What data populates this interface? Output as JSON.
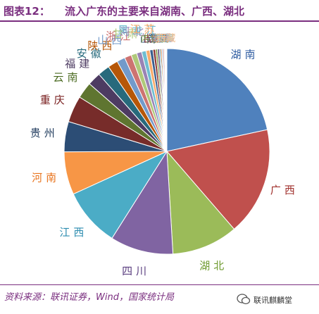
{
  "figure": {
    "number": "图表12：",
    "title": "流入广东的主要来自湖南、广西、湖北"
  },
  "source": "资料来源：联讯证券，Wind，国家统计局",
  "watermark": "联讯麒麟堂",
  "chart_data": {
    "type": "pie",
    "categories": [
      "湖南",
      "广西",
      "湖北",
      "四川",
      "江西",
      "河南",
      "贵州",
      "重庆",
      "云南",
      "福建",
      "安徽",
      "陕西",
      "山西",
      "浙江",
      "甘肃",
      "河北",
      "黑龙江",
      "江苏",
      "山东",
      "吉林",
      "内蒙古",
      "辽宁",
      "宁夏",
      "青海",
      "新疆",
      "海南",
      "天津",
      "上海",
      "北京",
      "西藏"
    ],
    "values": [
      21.8,
      17.2,
      10.5,
      10.0,
      9.3,
      6.8,
      4.8,
      4.2,
      2.6,
      2.1,
      1.9,
      1.6,
      1.3,
      1.1,
      0.9,
      0.8,
      0.7,
      0.6,
      0.5,
      0.4,
      0.3,
      0.3,
      0.2,
      0.2,
      0.2,
      0.2,
      0.1,
      0.1,
      0.1,
      0.1
    ],
    "colors": [
      "#4f81bd",
      "#c0504d",
      "#9bbb59",
      "#8064a2",
      "#4bacc6",
      "#f79646",
      "#2c4d75",
      "#772c2a",
      "#5f7530",
      "#4d3b62",
      "#276a7c",
      "#b65708",
      "#729aca",
      "#cd7371",
      "#afc97a",
      "#9983b5",
      "#6fbdd1",
      "#f9ab6b",
      "#3a5f8e",
      "#8e3633",
      "#7d9a43",
      "#5f4a7a",
      "#33859b",
      "#cf6c1d",
      "#95b3d7",
      "#d99694",
      "#c3d69b",
      "#b3a2c7",
      "#93cddd",
      "#fac08f"
    ],
    "label_colors": [
      "#2c5aa0",
      "#a0302c",
      "#6e9a2e",
      "#5b3f80",
      "#2e8db0",
      "#e8731c",
      "#1f3a5c",
      "#7a2020",
      "#4a6a20",
      "#4d3b62",
      "#276a7c",
      "#b65708",
      "#729aca",
      "#cd7371",
      "#afc97a",
      "#9983b5",
      "#6fbdd1",
      "#f9ab6b",
      "#3a5f8e",
      "#8e3633",
      "#7d9a43",
      "#5f4a7a",
      "#33859b",
      "#cf6c1d",
      "#95b3d7",
      "#d99694",
      "#c3d69b",
      "#b3a2c7",
      "#93cddd",
      "#fac08f"
    ],
    "start_angle_deg": 0,
    "direction": "clockwise",
    "legend": "none",
    "data_labels": "category names outside slices"
  }
}
